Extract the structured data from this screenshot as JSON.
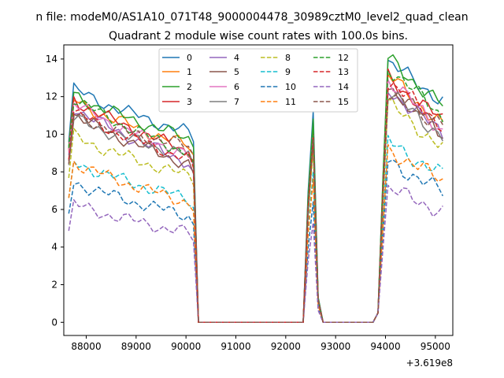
{
  "chart_data": {
    "type": "line",
    "suptitle": "n file: modeM0/AS1A10_071T48_9000004478_30989cztM0_level2_quad_clean",
    "title": "Quadrant 2 module wise count rates with 100.0s bins.",
    "xlabel": "",
    "ylabel": "",
    "x_offset_label": "+3.619e8",
    "xlim": [
      87550,
      95350
    ],
    "ylim": [
      -0.7,
      14.75
    ],
    "x_ticks": [
      88000,
      89000,
      90000,
      91000,
      92000,
      93000,
      94000,
      95000
    ],
    "x_tick_labels": [
      "88000",
      "89000",
      "90000",
      "91000",
      "92000",
      "93000",
      "94000",
      "95000"
    ],
    "y_ticks": [
      0,
      2,
      4,
      6,
      8,
      10,
      12,
      14
    ],
    "y_tick_labels": [
      "0",
      "2",
      "4",
      "6",
      "8",
      "10",
      "12",
      "14"
    ],
    "grid": false,
    "legend_position": "upper center",
    "segments": [
      {
        "start": 87650,
        "count": 26
      },
      {
        "start": 90250,
        "count": 22
      },
      {
        "start": 92450,
        "count": 3
      },
      {
        "start": 92750,
        "count": 11
      },
      {
        "start": 93850,
        "count": 14
      }
    ],
    "series": [
      {
        "name": "0",
        "color": "#1f77b4",
        "dash": "solid",
        "base": 12.6,
        "decay": 2.6,
        "peak": 11.2,
        "post": 13.8,
        "post_decay": 2.0
      },
      {
        "name": "1",
        "color": "#ff7f0e",
        "dash": "solid",
        "base": 12.0,
        "decay": 2.7,
        "peak": 10.4,
        "post": 13.1,
        "post_decay": 2.6
      },
      {
        "name": "2",
        "color": "#2ca02c",
        "dash": "solid",
        "base": 12.3,
        "decay": 2.6,
        "peak": 10.8,
        "post": 14.0,
        "post_decay": 2.5
      },
      {
        "name": "3",
        "color": "#d62728",
        "dash": "solid",
        "base": 12.1,
        "decay": 3.1,
        "peak": 10.1,
        "post": 13.0,
        "post_decay": 2.3
      },
      {
        "name": "4",
        "color": "#9467bd",
        "dash": "solid",
        "base": 11.7,
        "decay": 3.3,
        "peak": 9.6,
        "post": 12.4,
        "post_decay": 2.4
      },
      {
        "name": "5",
        "color": "#8c564b",
        "dash": "solid",
        "base": 11.3,
        "decay": 3.0,
        "peak": 9.5,
        "post": 12.6,
        "post_decay": 2.5
      },
      {
        "name": "6",
        "color": "#e377c2",
        "dash": "solid",
        "base": 11.9,
        "decay": 3.1,
        "peak": 9.9,
        "post": 12.9,
        "post_decay": 2.7
      },
      {
        "name": "7",
        "color": "#7f7f7f",
        "dash": "solid",
        "base": 11.0,
        "decay": 2.2,
        "peak": 9.8,
        "post": 12.2,
        "post_decay": 2.3
      },
      {
        "name": "8",
        "color": "#bcbd22",
        "dash": "dashed",
        "base": 10.1,
        "decay": 2.4,
        "peak": 9.2,
        "post": 11.6,
        "post_decay": 2.3
      },
      {
        "name": "9",
        "color": "#17becf",
        "dash": "dashed",
        "base": 8.7,
        "decay": 2.2,
        "peak": 8.0,
        "post": 9.6,
        "post_decay": 1.8
      },
      {
        "name": "10",
        "color": "#1f77b4",
        "dash": "dashed",
        "base": 7.6,
        "decay": 2.0,
        "peak": 6.4,
        "post": 8.6,
        "post_decay": 1.7
      },
      {
        "name": "11",
        "color": "#ff7f0e",
        "dash": "dashed",
        "base": 8.7,
        "decay": 2.4,
        "peak": 7.6,
        "post": 9.2,
        "post_decay": 1.7
      },
      {
        "name": "12",
        "color": "#2ca02c",
        "dash": "dashed",
        "base": 12.2,
        "decay": 3.3,
        "peak": 10.2,
        "post": 13.6,
        "post_decay": 2.7
      },
      {
        "name": "13",
        "color": "#d62728",
        "dash": "dashed",
        "base": 11.4,
        "decay": 2.8,
        "peak": 9.8,
        "post": 12.8,
        "post_decay": 2.3
      },
      {
        "name": "14",
        "color": "#9467bd",
        "dash": "dashed",
        "base": 6.4,
        "decay": 1.7,
        "peak": 5.3,
        "post": 7.1,
        "post_decay": 1.2
      },
      {
        "name": "15",
        "color": "#8c564b",
        "dash": "dashed",
        "base": 11.1,
        "decay": 1.8,
        "peak": 9.7,
        "post": 12.0,
        "post_decay": 1.5
      }
    ]
  }
}
